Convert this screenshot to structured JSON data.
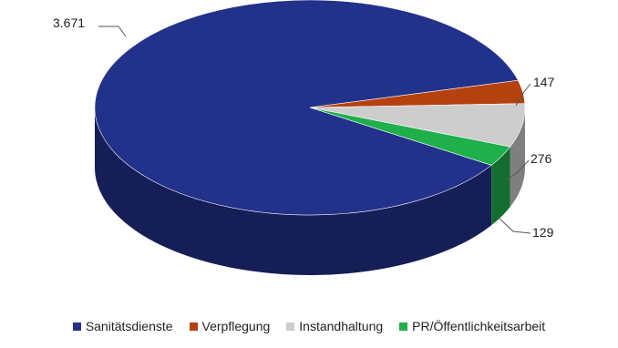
{
  "chart_data": {
    "type": "pie",
    "three_d": true,
    "title": "",
    "categories": [
      "Sanitätsdienste",
      "Verpflegung",
      "Instandhaltung",
      "PR/Öffentlichkeitsarbeit"
    ],
    "values": [
      3671,
      147,
      276,
      129
    ],
    "labels": [
      "3.671",
      "147",
      "276",
      "129"
    ],
    "colors": [
      "#22318a",
      "#b5410f",
      "#cdcdcd",
      "#1faf4b"
    ],
    "legend_position": "bottom"
  }
}
